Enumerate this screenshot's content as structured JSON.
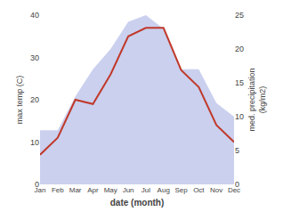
{
  "chart_data": {
    "type": "line",
    "categories": [
      "Jan",
      "Feb",
      "Mar",
      "Apr",
      "May",
      "Jun",
      "Jul",
      "Aug",
      "Sep",
      "Oct",
      "Nov",
      "Dec"
    ],
    "series": [
      {
        "type": "area",
        "axis": "y2",
        "color": "#b8c0e8",
        "values": [
          8,
          8,
          13,
          17,
          20,
          24,
          25,
          23,
          17,
          17,
          12,
          10
        ]
      },
      {
        "type": "line",
        "color": "#c0392b",
        "values": [
          7,
          11,
          20,
          19,
          26,
          35,
          37,
          37,
          27,
          23,
          14,
          10
        ]
      }
    ],
    "xlabel": "date (month)",
    "ylabel": "max temp (C)",
    "y2label": "med. precipitation\n(kg/m2)",
    "ylim": [
      0,
      40
    ],
    "yticks": [
      0,
      10,
      20,
      30,
      40
    ],
    "y2lim": [
      0,
      25
    ],
    "y2ticks": [
      0,
      5,
      10,
      15,
      20,
      25
    ],
    "grid": false
  }
}
